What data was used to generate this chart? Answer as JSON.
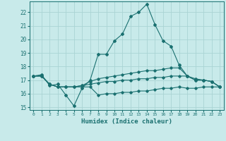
{
  "title": "",
  "xlabel": "Humidex (Indice chaleur)",
  "background_color": "#c8eaea",
  "grid_color": "#aad4d4",
  "line_color": "#1a7070",
  "x_values": [
    0,
    1,
    2,
    3,
    4,
    5,
    6,
    7,
    8,
    9,
    10,
    11,
    12,
    13,
    14,
    15,
    16,
    17,
    18,
    19,
    20,
    21,
    22,
    23
  ],
  "line1": [
    17.3,
    17.4,
    16.6,
    16.7,
    15.9,
    15.1,
    16.4,
    17.0,
    18.9,
    18.9,
    19.9,
    20.4,
    21.7,
    22.0,
    22.6,
    21.1,
    19.9,
    19.5,
    18.1,
    17.3,
    17.1,
    17.0,
    16.9,
    16.5
  ],
  "line2": [
    17.3,
    17.3,
    16.7,
    16.5,
    16.5,
    16.5,
    16.6,
    16.9,
    17.1,
    17.2,
    17.3,
    17.4,
    17.5,
    17.6,
    17.7,
    17.7,
    17.8,
    17.9,
    17.9,
    17.3,
    17.0,
    17.0,
    16.9,
    16.5
  ],
  "line3": [
    17.3,
    17.3,
    16.7,
    16.5,
    16.5,
    16.5,
    16.6,
    16.7,
    16.8,
    16.9,
    16.9,
    17.0,
    17.0,
    17.1,
    17.1,
    17.2,
    17.2,
    17.3,
    17.3,
    17.3,
    17.0,
    17.0,
    16.9,
    16.5
  ],
  "line4": [
    17.3,
    17.3,
    16.7,
    16.5,
    16.5,
    16.5,
    16.5,
    16.5,
    15.9,
    16.0,
    16.0,
    16.1,
    16.1,
    16.2,
    16.2,
    16.3,
    16.4,
    16.4,
    16.5,
    16.4,
    16.4,
    16.5,
    16.5,
    16.5
  ],
  "ylim": [
    14.8,
    22.8
  ],
  "yticks": [
    15,
    16,
    17,
    18,
    19,
    20,
    21,
    22
  ],
  "xlim": [
    -0.5,
    23.5
  ],
  "figsize": [
    3.2,
    2.0
  ],
  "dpi": 100
}
